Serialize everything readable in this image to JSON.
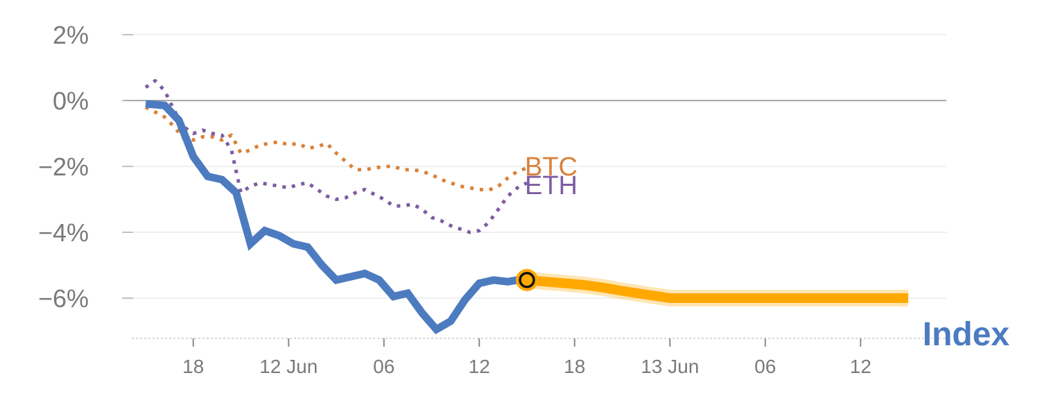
{
  "chart_data": {
    "type": "line",
    "title": "",
    "xlabel": "",
    "ylabel": "",
    "ylim": [
      -7.2,
      2.2
    ],
    "grid": true,
    "zero_line": true,
    "y_ticks": [
      {
        "value": 2,
        "label": "2%"
      },
      {
        "value": 0,
        "label": "0%"
      },
      {
        "value": -2,
        "label": "−2%"
      },
      {
        "value": -4,
        "label": "−4%"
      },
      {
        "value": -6,
        "label": "−6%"
      }
    ],
    "x_ticks": [
      {
        "value": 5,
        "label": "18"
      },
      {
        "value": 15,
        "label": "12 Jun"
      },
      {
        "value": 25,
        "label": "06"
      },
      {
        "value": 35,
        "label": "12"
      },
      {
        "value": 45,
        "label": "18"
      },
      {
        "value": 55,
        "label": "13 Jun"
      },
      {
        "value": 65,
        "label": "06"
      },
      {
        "value": 75,
        "label": "12"
      }
    ],
    "xlim": [
      -3,
      82
    ],
    "series": [
      {
        "name": "BTC",
        "style": "dotted",
        "color": "#d9813a",
        "x": [
          0,
          1,
          2,
          3,
          4,
          5,
          6,
          7,
          8,
          9,
          10,
          11,
          12,
          13,
          14,
          15,
          16,
          17,
          18,
          19,
          20,
          21,
          22,
          23,
          24,
          25,
          26,
          27,
          28,
          29,
          30,
          31,
          32,
          33,
          34,
          35,
          36,
          37,
          38,
          39,
          40
        ],
        "y": [
          -0.2,
          -0.35,
          -0.5,
          -0.8,
          -1.15,
          -1.2,
          -1.1,
          -1.1,
          -1.2,
          -1.05,
          -1.6,
          -1.5,
          -1.35,
          -1.3,
          -1.25,
          -1.35,
          -1.3,
          -1.45,
          -1.4,
          -1.3,
          -1.6,
          -1.85,
          -2.1,
          -2.1,
          -2.05,
          -2.0,
          -2.0,
          -2.1,
          -2.1,
          -2.15,
          -2.25,
          -2.4,
          -2.5,
          -2.6,
          -2.65,
          -2.7,
          -2.72,
          -2.6,
          -2.35,
          -2.15,
          -2.05
        ]
      },
      {
        "name": "ETH",
        "style": "dotted",
        "color": "#7d5ca3",
        "x": [
          0,
          1,
          2,
          3,
          4,
          5,
          6,
          7,
          8,
          9,
          10,
          11,
          12,
          13,
          14,
          15,
          16,
          17,
          18,
          19,
          20,
          21,
          22,
          23,
          24,
          25,
          26,
          27,
          28,
          29,
          30,
          31,
          32,
          33,
          34,
          35,
          36,
          37,
          38,
          39,
          40
        ],
        "y": [
          0.4,
          0.6,
          0.3,
          -0.3,
          -0.8,
          -1.0,
          -0.9,
          -1.0,
          -1.05,
          -1.5,
          -2.8,
          -2.6,
          -2.5,
          -2.55,
          -2.6,
          -2.65,
          -2.55,
          -2.5,
          -2.7,
          -2.9,
          -3.0,
          -2.95,
          -2.8,
          -2.7,
          -2.85,
          -3.0,
          -3.2,
          -3.2,
          -3.15,
          -3.3,
          -3.55,
          -3.65,
          -3.8,
          -3.9,
          -4.0,
          -3.95,
          -3.7,
          -3.3,
          -2.9,
          -2.65,
          -2.5
        ]
      },
      {
        "name": "Index",
        "style": "solid",
        "color": "#4c7bc0",
        "x": [
          0,
          2,
          3.5,
          5,
          6.5,
          8,
          9.5,
          11,
          12.5,
          14,
          15.5,
          17,
          18.5,
          20,
          21.5,
          23,
          24.5,
          26,
          27.5,
          29,
          30.5,
          32,
          33.5,
          35,
          36.5,
          38,
          39,
          40
        ],
        "y": [
          -0.1,
          -0.15,
          -0.6,
          -1.7,
          -2.3,
          -2.4,
          -2.8,
          -4.35,
          -3.95,
          -4.1,
          -4.35,
          -4.45,
          -5.0,
          -5.45,
          -5.35,
          -5.25,
          -5.45,
          -5.95,
          -5.85,
          -6.45,
          -6.95,
          -6.7,
          -6.05,
          -5.55,
          -5.45,
          -5.5,
          -5.45,
          -5.45
        ]
      },
      {
        "name": "",
        "style": "projection",
        "color": "#ffa800",
        "x": [
          40,
          42,
          44,
          46,
          48,
          50,
          52,
          55,
          60,
          65,
          70,
          75,
          80
        ],
        "y": [
          -5.45,
          -5.5,
          -5.55,
          -5.6,
          -5.68,
          -5.78,
          -5.87,
          -6.0,
          -6.0,
          -6.0,
          -6.0,
          -6.0,
          -6.0
        ]
      }
    ],
    "marker": {
      "x": 40,
      "y": -5.45,
      "color": "#ffa800"
    },
    "legend": "inline labels at series ends"
  }
}
